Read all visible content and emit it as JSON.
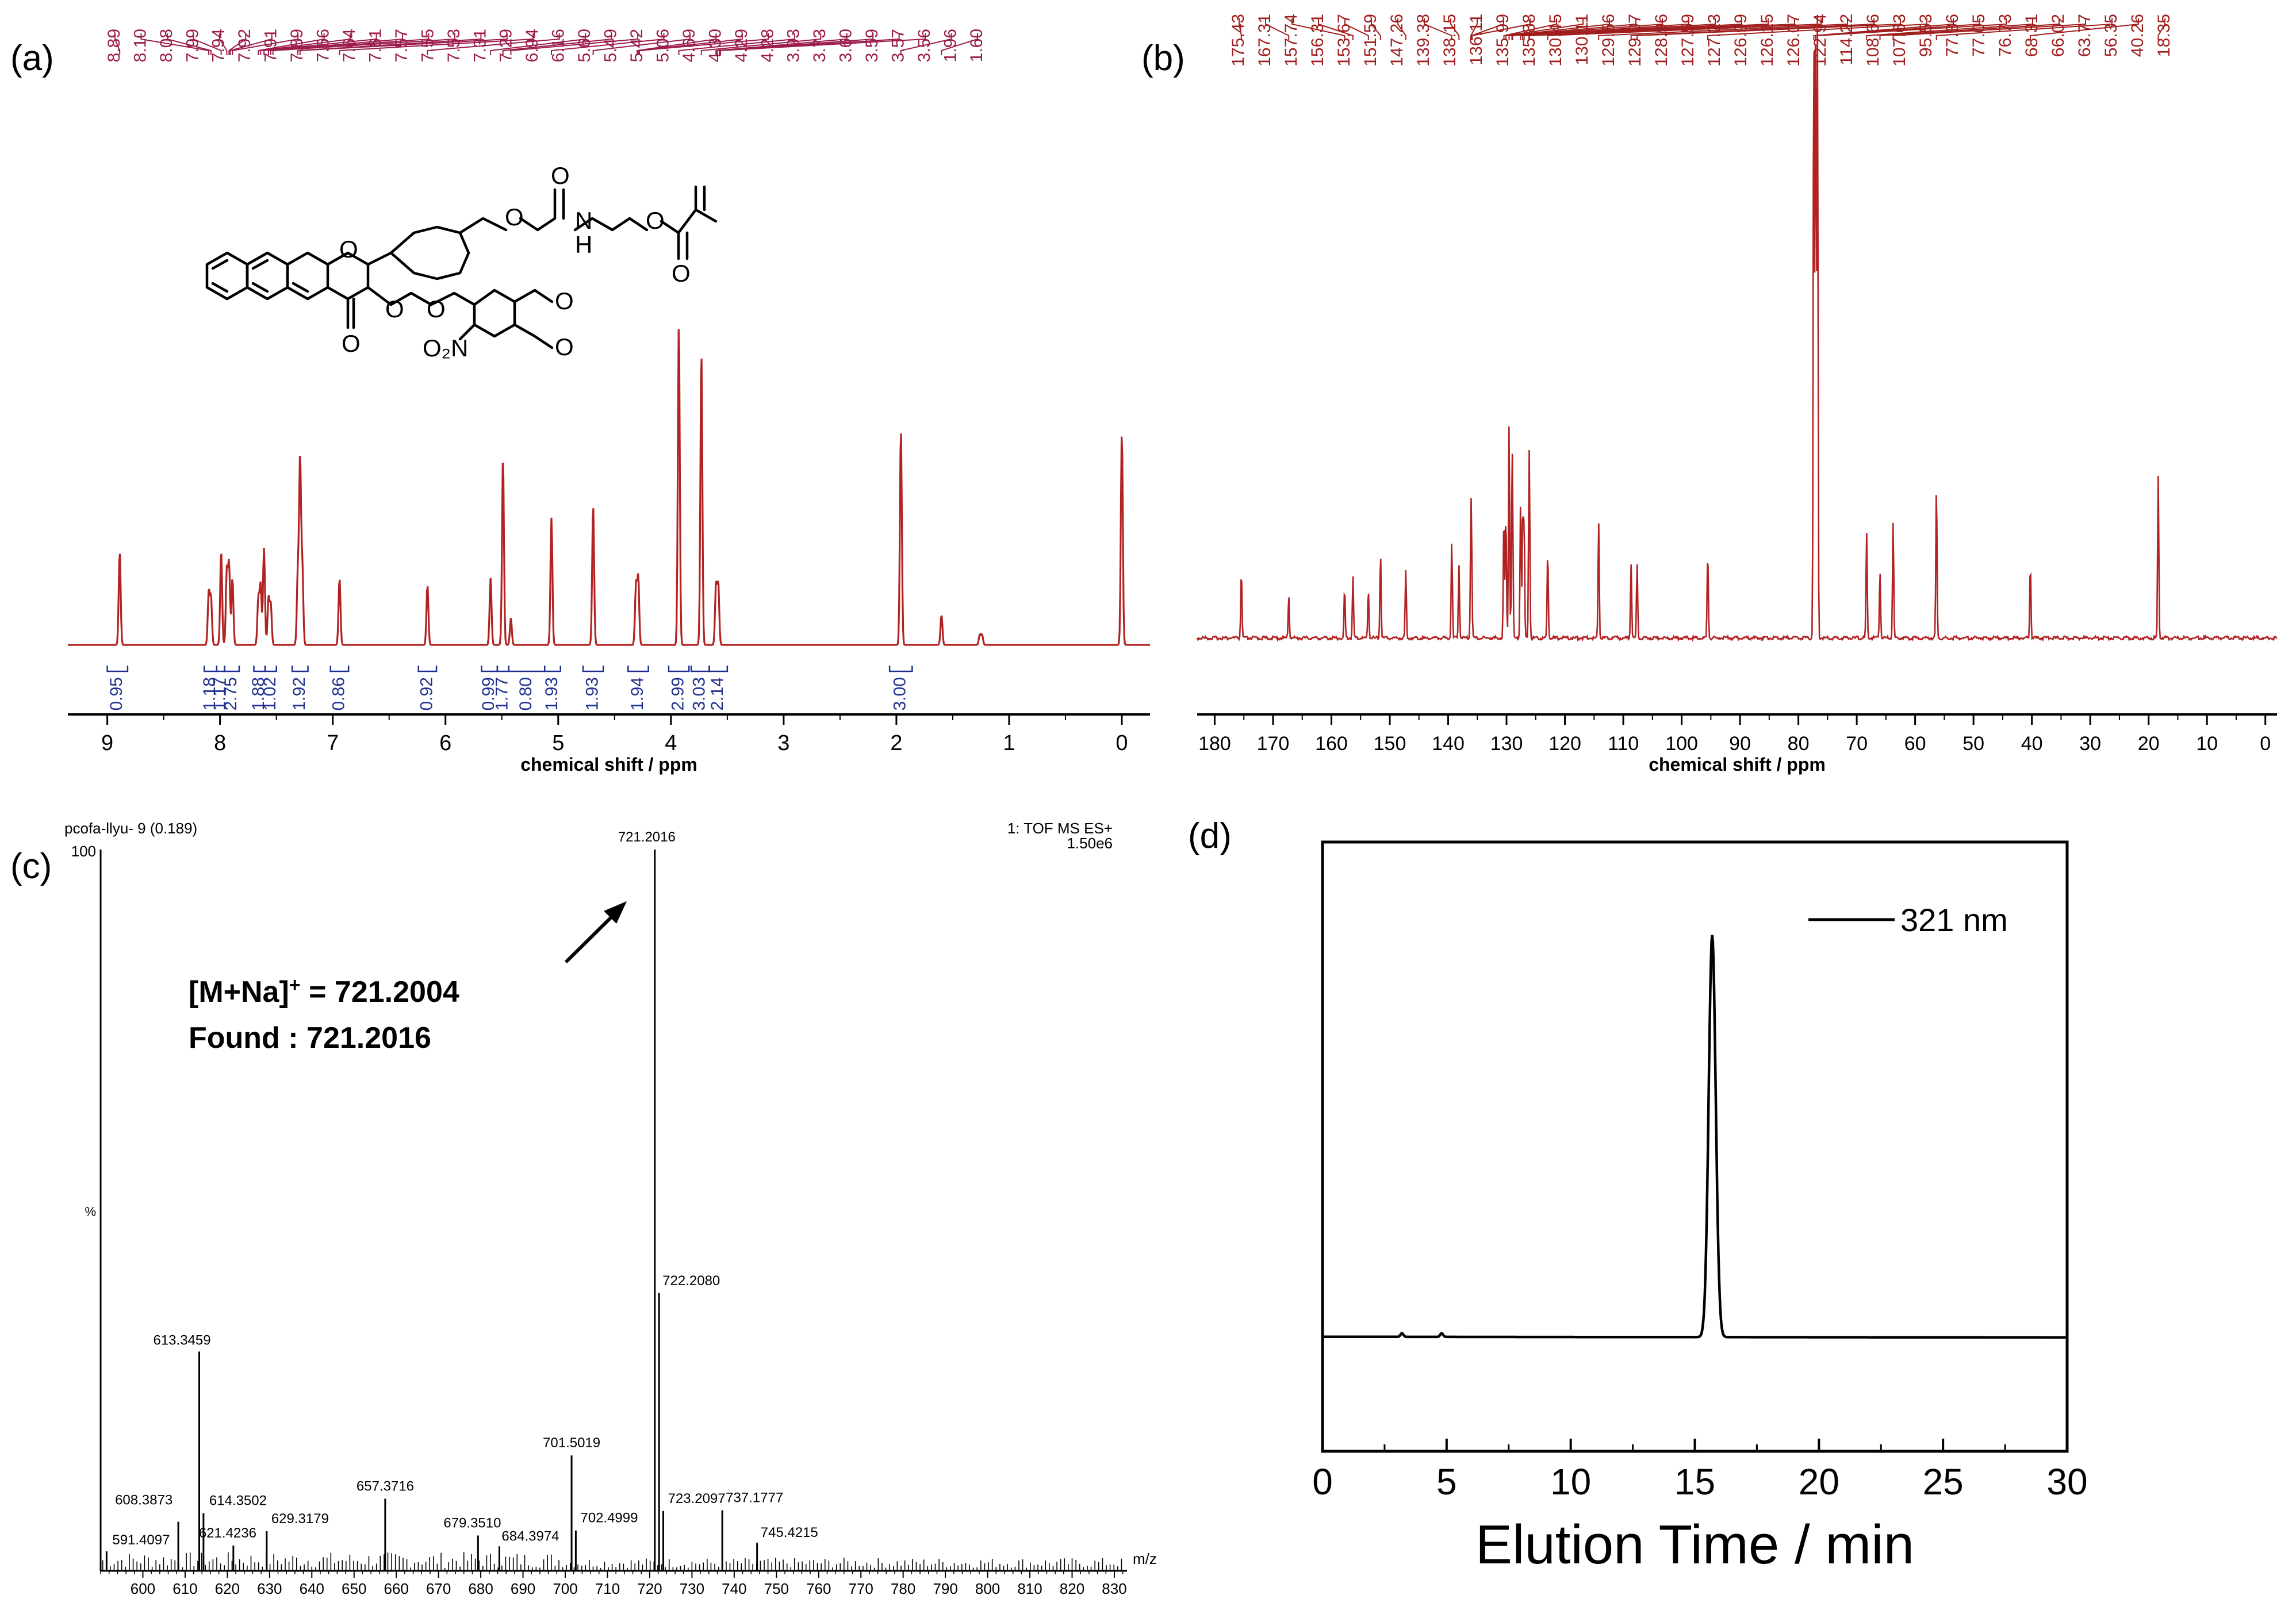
{
  "panels": {
    "a": {
      "label": "(a)"
    },
    "b": {
      "label": "(b)"
    },
    "c": {
      "label": "(c)"
    },
    "d": {
      "label": "(d)"
    }
  },
  "colors": {
    "nmr_trace": "#b22222",
    "peak_labels": "#9b1c4c",
    "c13_labels": "#a01e1e",
    "integration": "#1f2f8f",
    "ink": "#000000"
  },
  "chart_data": [
    {
      "panel": "a",
      "type": "line",
      "xlabel": "chemical shift / ppm",
      "xlim": [
        9.35,
        -0.25
      ],
      "x_reversed": true,
      "xticks": [
        9,
        8,
        7,
        6,
        5,
        4,
        3,
        2,
        1,
        0
      ],
      "peak_labels": [
        "8.89",
        "8.10",
        "8.08",
        "7.99",
        "7.94",
        "7.92",
        "7.91",
        "7.89",
        "7.66",
        "7.64",
        "7.61",
        "7.57",
        "7.55",
        "7.53",
        "7.31",
        "7.29",
        "6.94",
        "6.16",
        "5.60",
        "5.49",
        "5.42",
        "5.06",
        "4.69",
        "4.30",
        "4.29",
        "4.28",
        "3.93",
        "3.73",
        "3.60",
        "3.59",
        "3.57",
        "3.56",
        "1.96",
        "1.60"
      ],
      "peaks": [
        {
          "x": 8.89,
          "h": 0.28
        },
        {
          "x": 8.1,
          "h": 0.16
        },
        {
          "x": 8.08,
          "h": 0.14
        },
        {
          "x": 7.99,
          "h": 0.28
        },
        {
          "x": 7.94,
          "h": 0.22
        },
        {
          "x": 7.92,
          "h": 0.24
        },
        {
          "x": 7.89,
          "h": 0.2
        },
        {
          "x": 7.66,
          "h": 0.14
        },
        {
          "x": 7.64,
          "h": 0.18
        },
        {
          "x": 7.61,
          "h": 0.29
        },
        {
          "x": 7.57,
          "h": 0.14
        },
        {
          "x": 7.55,
          "h": 0.12
        },
        {
          "x": 7.31,
          "h": 0.21
        },
        {
          "x": 7.29,
          "h": 0.55
        },
        {
          "x": 7.27,
          "h": 0.23
        },
        {
          "x": 6.94,
          "h": 0.2
        },
        {
          "x": 6.16,
          "h": 0.18
        },
        {
          "x": 5.6,
          "h": 0.2
        },
        {
          "x": 5.49,
          "h": 0.56
        },
        {
          "x": 5.42,
          "h": 0.08
        },
        {
          "x": 5.06,
          "h": 0.38
        },
        {
          "x": 4.69,
          "h": 0.42
        },
        {
          "x": 4.31,
          "h": 0.18
        },
        {
          "x": 4.29,
          "h": 0.2
        },
        {
          "x": 3.93,
          "h": 0.97
        },
        {
          "x": 3.73,
          "h": 0.88
        },
        {
          "x": 3.6,
          "h": 0.18
        },
        {
          "x": 3.58,
          "h": 0.18
        },
        {
          "x": 1.96,
          "h": 0.65
        },
        {
          "x": 1.6,
          "h": 0.09
        },
        {
          "x": 1.26,
          "h": 0.03
        },
        {
          "x": 1.24,
          "h": 0.03
        },
        {
          "x": 0.0,
          "h": 0.64
        }
      ],
      "integrations": [
        {
          "x1": 9.0,
          "x2": 8.82,
          "value": "0.95"
        },
        {
          "x1": 8.14,
          "x2": 8.03,
          "value": "1.18"
        },
        {
          "x1": 8.03,
          "x2": 7.96,
          "value": "1.17"
        },
        {
          "x1": 7.96,
          "x2": 7.83,
          "value": "2.75"
        },
        {
          "x1": 7.7,
          "x2": 7.6,
          "value": "1.88"
        },
        {
          "x1": 7.6,
          "x2": 7.5,
          "value": "1.02"
        },
        {
          "x1": 7.36,
          "x2": 7.22,
          "value": "1.92"
        },
        {
          "x1": 7.02,
          "x2": 6.86,
          "value": "0.86"
        },
        {
          "x1": 6.24,
          "x2": 6.08,
          "value": "0.92"
        },
        {
          "x1": 5.68,
          "x2": 5.54,
          "value": "0.99"
        },
        {
          "x1": 5.54,
          "x2": 5.44,
          "value": "1.77"
        },
        {
          "x1": 5.44,
          "x2": 5.12,
          "value": "0.80"
        },
        {
          "x1": 5.12,
          "x2": 4.98,
          "value": "1.93"
        },
        {
          "x1": 4.78,
          "x2": 4.6,
          "value": "1.93"
        },
        {
          "x1": 4.38,
          "x2": 4.2,
          "value": "1.94"
        },
        {
          "x1": 4.02,
          "x2": 3.84,
          "value": "2.99"
        },
        {
          "x1": 3.82,
          "x2": 3.66,
          "value": "3.03"
        },
        {
          "x1": 3.66,
          "x2": 3.5,
          "value": "2.14"
        },
        {
          "x1": 2.06,
          "x2": 1.86,
          "value": "3.00"
        }
      ]
    },
    {
      "panel": "b",
      "type": "line",
      "xlabel": "chemical shift / ppm",
      "xlim": [
        183,
        -2
      ],
      "x_reversed": true,
      "xticks": [
        180,
        170,
        160,
        150,
        140,
        130,
        120,
        110,
        100,
        90,
        80,
        70,
        60,
        50,
        40,
        30,
        20,
        10,
        0
      ],
      "peak_labels": [
        "175.43",
        "167.31",
        "157.74",
        "156.31",
        "153.67",
        "151.59",
        "147.26",
        "139.38",
        "138.15",
        "136.11",
        "135.99",
        "135.88",
        "130.45",
        "130.11",
        "129.56",
        "129.07",
        "128.96",
        "127.59",
        "127.23",
        "126.99",
        "126.15",
        "126.07",
        "122.94",
        "114.22",
        "108.66",
        "107.63",
        "95.53",
        "77.36",
        "77.05",
        "76.73",
        "68.31",
        "66.02",
        "63.77",
        "56.35",
        "40.26",
        "18.35"
      ],
      "peaks": [
        {
          "x": 175.43,
          "h": 0.11
        },
        {
          "x": 167.31,
          "h": 0.07
        },
        {
          "x": 157.74,
          "h": 0.08
        },
        {
          "x": 156.31,
          "h": 0.1
        },
        {
          "x": 153.67,
          "h": 0.08
        },
        {
          "x": 151.59,
          "h": 0.14
        },
        {
          "x": 147.26,
          "h": 0.11
        },
        {
          "x": 139.38,
          "h": 0.16
        },
        {
          "x": 138.15,
          "h": 0.12
        },
        {
          "x": 136.11,
          "h": 0.15
        },
        {
          "x": 135.99,
          "h": 0.12
        },
        {
          "x": 130.45,
          "h": 0.2
        },
        {
          "x": 130.11,
          "h": 0.2
        },
        {
          "x": 129.56,
          "h": 0.35
        },
        {
          "x": 129.07,
          "h": 0.19
        },
        {
          "x": 128.96,
          "h": 0.16
        },
        {
          "x": 127.59,
          "h": 0.22
        },
        {
          "x": 127.23,
          "h": 0.2
        },
        {
          "x": 126.99,
          "h": 0.18
        },
        {
          "x": 126.15,
          "h": 0.17
        },
        {
          "x": 126.07,
          "h": 0.16
        },
        {
          "x": 122.94,
          "h": 0.14
        },
        {
          "x": 114.22,
          "h": 0.19
        },
        {
          "x": 108.66,
          "h": 0.12
        },
        {
          "x": 107.63,
          "h": 0.12
        },
        {
          "x": 95.53,
          "h": 0.14
        },
        {
          "x": 77.36,
          "h": 1.0
        },
        {
          "x": 77.05,
          "h": 1.0
        },
        {
          "x": 76.73,
          "h": 1.0
        },
        {
          "x": 68.31,
          "h": 0.17
        },
        {
          "x": 66.02,
          "h": 0.11
        },
        {
          "x": 63.77,
          "h": 0.19
        },
        {
          "x": 56.35,
          "h": 0.25
        },
        {
          "x": 40.26,
          "h": 0.12
        },
        {
          "x": 18.35,
          "h": 0.26
        }
      ]
    },
    {
      "panel": "c",
      "type": "bar",
      "header_left": "pcofa-llyu- 9 (0.189)",
      "header_right_1": "1: TOF MS ES+",
      "header_right_2": "1.50e6",
      "y_top_label": "100",
      "y_mid_label": "%",
      "xlabel": "m/z",
      "xlim": [
        590,
        833
      ],
      "ylim": [
        0,
        100
      ],
      "xticks": [
        600,
        610,
        620,
        630,
        640,
        650,
        660,
        670,
        680,
        690,
        700,
        710,
        720,
        730,
        740,
        750,
        760,
        770,
        780,
        790,
        800,
        810,
        820,
        830
      ],
      "labeled_peaks": [
        {
          "mz": 591.4097,
          "label": "591.4097",
          "rel": 2.7
        },
        {
          "mz": 608.3873,
          "label": "608.3873",
          "rel": 6.8
        },
        {
          "mz": 613.3459,
          "label": "613.3459",
          "rel": 30.4
        },
        {
          "mz": 614.3502,
          "label": "614.3502",
          "rel": 8.0
        },
        {
          "mz": 621.4236,
          "label": "621.4236",
          "rel": 3.5
        },
        {
          "mz": 629.3179,
          "label": "629.3179",
          "rel": 5.5
        },
        {
          "mz": 657.3716,
          "label": "657.3716",
          "rel": 10.0
        },
        {
          "mz": 679.351,
          "label": "679.3510",
          "rel": 4.9
        },
        {
          "mz": 684.3974,
          "label": "684.3974",
          "rel": 3.4
        },
        {
          "mz": 701.5019,
          "label": "701.5019",
          "rel": 16.0
        },
        {
          "mz": 702.4999,
          "label": "702.4999",
          "rel": 5.6
        },
        {
          "mz": 721.2016,
          "label": "721.2016",
          "rel": 100.0
        },
        {
          "mz": 722.208,
          "label": "722.2080",
          "rel": 38.5
        },
        {
          "mz": 723.2097,
          "label": "723.2097",
          "rel": 8.3
        },
        {
          "mz": 737.1777,
          "label": "737.1777",
          "rel": 8.4
        },
        {
          "mz": 745.4215,
          "label": "745.4215",
          "rel": 3.9
        }
      ],
      "annotation_line1_pre": "[M+Na]",
      "annotation_line1_sup": "+",
      "annotation_line1_post": " = 721.2004",
      "annotation_line2": "Found : 721.2016"
    },
    {
      "panel": "d",
      "type": "line",
      "xlabel": "Elution Time / min",
      "xlim": [
        0,
        30
      ],
      "ylim": [
        0,
        1
      ],
      "xticks": [
        0,
        5,
        10,
        15,
        20,
        25,
        30
      ],
      "series": [
        {
          "name": "321 nm",
          "baseline": 0.188,
          "peak_center": 15.7,
          "peak_height": 0.66,
          "peak_width": 0.2
        }
      ]
    }
  ]
}
